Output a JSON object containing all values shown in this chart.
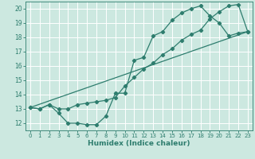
{
  "title": "",
  "xlabel": "Humidex (Indice chaleur)",
  "bg_color": "#cce8e0",
  "grid_color": "#ffffff",
  "line_color": "#2e7d6e",
  "xlim": [
    -0.5,
    23.5
  ],
  "ylim": [
    11.5,
    20.5
  ],
  "yticks": [
    12,
    13,
    14,
    15,
    16,
    17,
    18,
    19,
    20
  ],
  "xticks": [
    0,
    1,
    2,
    3,
    4,
    5,
    6,
    7,
    8,
    9,
    10,
    11,
    12,
    13,
    14,
    15,
    16,
    17,
    18,
    19,
    20,
    21,
    22,
    23
  ],
  "line1_x": [
    0,
    1,
    2,
    3,
    4,
    5,
    6,
    7,
    8,
    9,
    10,
    11,
    12,
    13,
    14,
    15,
    16,
    17,
    18,
    19,
    20,
    21,
    22,
    23
  ],
  "line1_y": [
    13.1,
    13.0,
    13.3,
    12.7,
    12.0,
    12.0,
    11.9,
    11.9,
    12.5,
    14.1,
    14.1,
    16.4,
    16.6,
    18.1,
    18.4,
    19.2,
    19.7,
    20.0,
    20.2,
    19.5,
    19.0,
    18.1,
    18.3,
    18.4
  ],
  "line2_x": [
    0,
    1,
    2,
    3,
    4,
    5,
    6,
    7,
    8,
    9,
    10,
    11,
    12,
    13,
    14,
    15,
    16,
    17,
    18,
    19,
    20,
    21,
    22,
    23
  ],
  "line2_y": [
    13.1,
    13.0,
    13.3,
    13.0,
    13.0,
    13.3,
    13.4,
    13.5,
    13.6,
    13.8,
    14.6,
    15.2,
    15.8,
    16.2,
    16.8,
    17.2,
    17.8,
    18.2,
    18.5,
    19.3,
    19.8,
    20.2,
    20.3,
    18.4
  ],
  "line3_x": [
    0,
    23
  ],
  "line3_y": [
    13.1,
    18.4
  ]
}
